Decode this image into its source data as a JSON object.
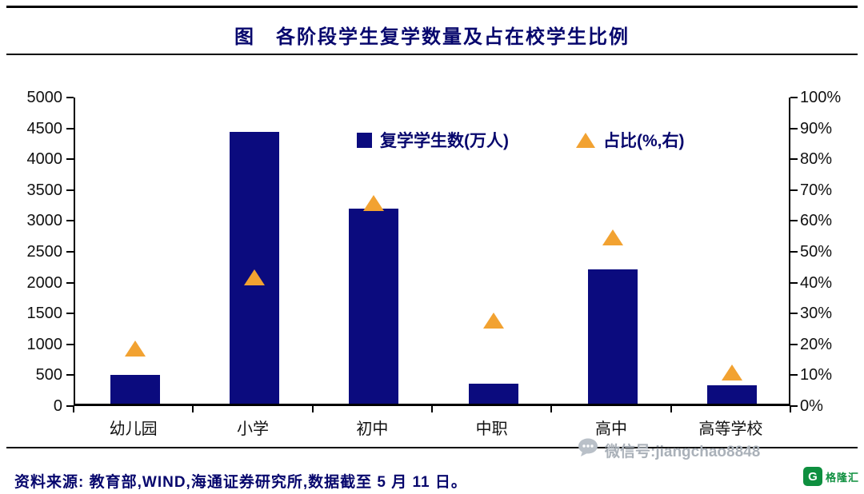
{
  "title": "图　各阶段学生复学数量及占在校学生比例",
  "legend": {
    "bars_label": "复学学生数(万人)",
    "ratio_label": "占比(%,右)"
  },
  "source": "资料来源: 教育部,WIND,海通证券研究所,数据截至 5 月 11 日。",
  "watermark": {
    "wechat": "微信号:jiangchao8848",
    "logo_text": "格隆汇",
    "logo_initial": "G"
  },
  "colors": {
    "bar": "#0b0b7e",
    "triangle": "#f2a231",
    "accent_text": "#07076d",
    "logo_green": "#0e8f3f",
    "watermark_gray": "#aab1b9"
  },
  "chart_data": {
    "type": "bar",
    "categories": [
      "幼儿园",
      "小学",
      "初中",
      "中职",
      "高中",
      "高等学校"
    ],
    "series": [
      {
        "name": "复学学生数(万人)",
        "type": "bar",
        "axis": "left",
        "values": [
          470,
          4400,
          3160,
          330,
          2170,
          300
        ]
      },
      {
        "name": "占比(%,右)",
        "type": "scatter-triangle",
        "axis": "right",
        "values": [
          18,
          41,
          65,
          27,
          54,
          10
        ]
      }
    ],
    "left_axis": {
      "min": 0,
      "max": 5000,
      "step": 500,
      "suffix": ""
    },
    "right_axis": {
      "min": 0,
      "max": 100,
      "step": 10,
      "suffix": "%"
    },
    "legend_position": "top-center-inside",
    "grid": false
  }
}
